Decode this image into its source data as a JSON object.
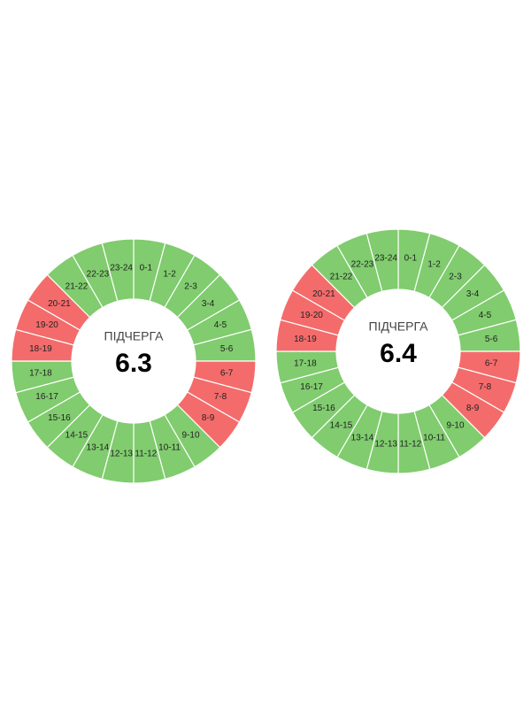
{
  "colors": {
    "on": "#80cc6e",
    "off": "#f46b6b"
  },
  "panels": [
    {
      "label": "ПІДЧЕРГА",
      "queue": "6.3",
      "segments": [
        {
          "label": "0-1",
          "status": "on"
        },
        {
          "label": "1-2",
          "status": "on"
        },
        {
          "label": "2-3",
          "status": "on"
        },
        {
          "label": "3-4",
          "status": "on"
        },
        {
          "label": "4-5",
          "status": "on"
        },
        {
          "label": "5-6",
          "status": "on"
        },
        {
          "label": "6-7",
          "status": "off"
        },
        {
          "label": "7-8",
          "status": "off"
        },
        {
          "label": "8-9",
          "status": "off"
        },
        {
          "label": "9-10",
          "status": "on"
        },
        {
          "label": "10-11",
          "status": "on"
        },
        {
          "label": "11-12",
          "status": "on"
        },
        {
          "label": "12-13",
          "status": "on"
        },
        {
          "label": "13-14",
          "status": "on"
        },
        {
          "label": "14-15",
          "status": "on"
        },
        {
          "label": "15-16",
          "status": "on"
        },
        {
          "label": "16-17",
          "status": "on"
        },
        {
          "label": "17-18",
          "status": "on"
        },
        {
          "label": "18-19",
          "status": "off"
        },
        {
          "label": "19-20",
          "status": "off"
        },
        {
          "label": "20-21",
          "status": "off"
        },
        {
          "label": "21-22",
          "status": "on"
        },
        {
          "label": "22-23",
          "status": "on"
        },
        {
          "label": "23-24",
          "status": "on"
        }
      ]
    },
    {
      "label": "ПІДЧЕРГА",
      "queue": "6.4",
      "segments": [
        {
          "label": "0-1",
          "status": "on"
        },
        {
          "label": "1-2",
          "status": "on"
        },
        {
          "label": "2-3",
          "status": "on"
        },
        {
          "label": "3-4",
          "status": "on"
        },
        {
          "label": "4-5",
          "status": "on"
        },
        {
          "label": "5-6",
          "status": "on"
        },
        {
          "label": "6-7",
          "status": "off"
        },
        {
          "label": "7-8",
          "status": "off"
        },
        {
          "label": "8-9",
          "status": "off"
        },
        {
          "label": "9-10",
          "status": "on"
        },
        {
          "label": "10-11",
          "status": "on"
        },
        {
          "label": "11-12",
          "status": "on"
        },
        {
          "label": "12-13",
          "status": "on"
        },
        {
          "label": "13-14",
          "status": "on"
        },
        {
          "label": "14-15",
          "status": "on"
        },
        {
          "label": "15-16",
          "status": "on"
        },
        {
          "label": "16-17",
          "status": "on"
        },
        {
          "label": "17-18",
          "status": "on"
        },
        {
          "label": "18-19",
          "status": "off"
        },
        {
          "label": "19-20",
          "status": "off"
        },
        {
          "label": "20-21",
          "status": "off"
        },
        {
          "label": "21-22",
          "status": "on"
        },
        {
          "label": "22-23",
          "status": "on"
        },
        {
          "label": "23-24",
          "status": "on"
        }
      ]
    }
  ]
}
